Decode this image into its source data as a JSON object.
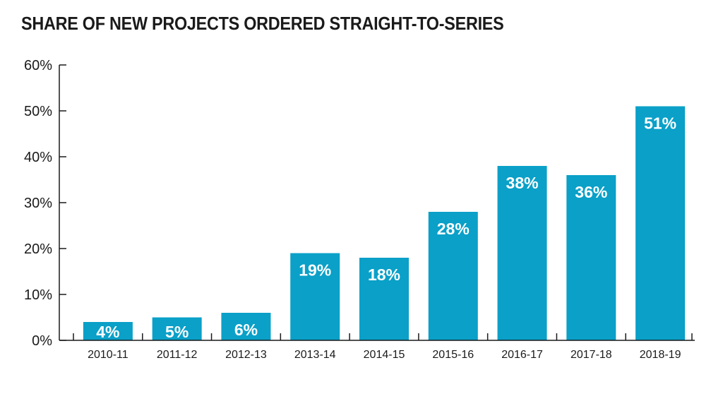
{
  "title": "SHARE OF NEW PROJECTS ORDERED STRAIGHT-TO-SERIES",
  "colors": {
    "bar": "#0aa0c8",
    "axis": "#1a1a1a",
    "label": "#ffffff",
    "background": "#ffffff"
  },
  "chart_data": {
    "type": "bar",
    "title": "SHARE OF NEW PROJECTS ORDERED STRAIGHT-TO-SERIES",
    "xlabel": "",
    "ylabel": "",
    "categories": [
      "2010-11",
      "2011-12",
      "2012-13",
      "2013-14",
      "2014-15",
      "2015-16",
      "2016-17",
      "2017-18",
      "2018-19"
    ],
    "values": [
      4,
      5,
      6,
      19,
      18,
      28,
      38,
      36,
      51
    ],
    "value_labels": [
      "4%",
      "5%",
      "6%",
      "19%",
      "18%",
      "28%",
      "38%",
      "36%",
      "51%"
    ],
    "ylim": [
      0,
      60
    ],
    "yticks": [
      0,
      10,
      20,
      30,
      40,
      50,
      60
    ],
    "ytick_labels": [
      "0%",
      "10%",
      "20%",
      "30%",
      "40%",
      "50%",
      "60%"
    ],
    "grid": false,
    "legend": "none"
  }
}
